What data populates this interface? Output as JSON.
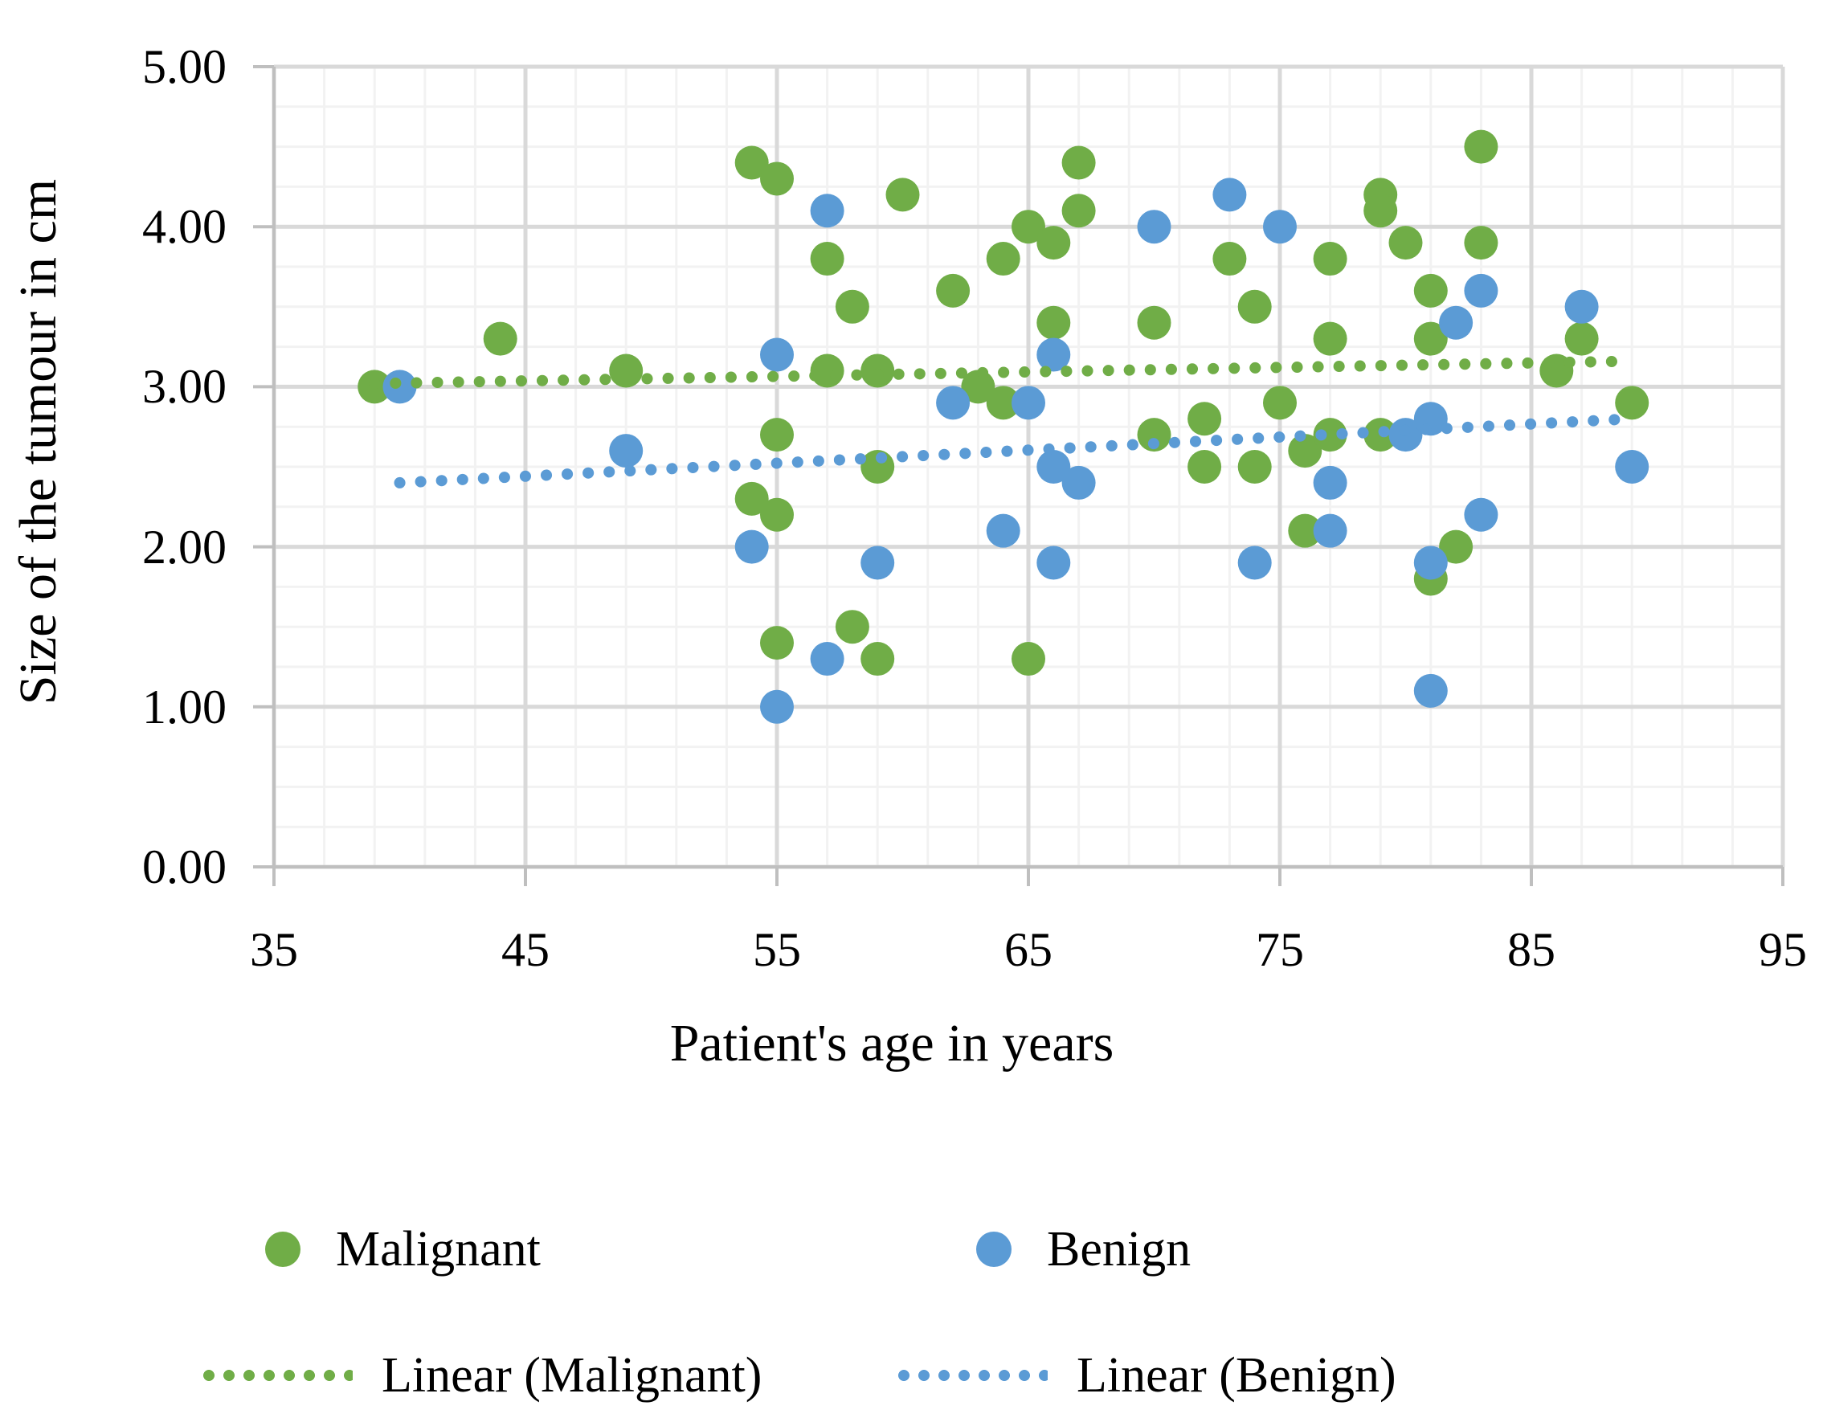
{
  "chart_data": {
    "type": "scatter",
    "xlabel": "Patient's age in years",
    "ylabel": "Size of the tumour in cm",
    "xlim": [
      35,
      95
    ],
    "ylim": [
      0,
      5
    ],
    "x_tick_labels": [
      "35",
      "45",
      "55",
      "65",
      "75",
      "85",
      "95"
    ],
    "y_tick_labels": [
      "5.00",
      "4.00",
      "3.00",
      "2.00",
      "1.00",
      "0.00"
    ],
    "x_major_step": 10,
    "x_minor_step": 2,
    "y_major_step": 1,
    "y_minor_step": 0.25,
    "grid": true,
    "legend_position": "bottom",
    "series": [
      {
        "name": "Malignant",
        "color": "#70AD47",
        "points": [
          [
            39,
            3.0
          ],
          [
            44,
            3.3
          ],
          [
            49,
            3.1
          ],
          [
            54,
            4.4
          ],
          [
            54,
            2.3
          ],
          [
            55,
            4.3
          ],
          [
            55,
            2.7
          ],
          [
            55,
            2.2
          ],
          [
            55,
            1.4
          ],
          [
            57,
            3.8
          ],
          [
            57,
            3.1
          ],
          [
            58,
            3.5
          ],
          [
            58,
            1.5
          ],
          [
            59,
            3.1
          ],
          [
            59,
            2.5
          ],
          [
            59,
            1.3
          ],
          [
            60,
            4.2
          ],
          [
            62,
            3.6
          ],
          [
            63,
            3.0
          ],
          [
            64,
            3.8
          ],
          [
            64,
            2.9
          ],
          [
            65,
            4.0
          ],
          [
            65,
            1.3
          ],
          [
            66,
            3.9
          ],
          [
            66,
            3.4
          ],
          [
            67,
            4.4
          ],
          [
            67,
            4.1
          ],
          [
            70,
            3.4
          ],
          [
            70,
            2.7
          ],
          [
            72,
            2.8
          ],
          [
            72,
            2.5
          ],
          [
            73,
            3.8
          ],
          [
            74,
            3.5
          ],
          [
            74,
            2.5
          ],
          [
            75,
            2.9
          ],
          [
            76,
            2.6
          ],
          [
            76,
            2.1
          ],
          [
            77,
            3.8
          ],
          [
            77,
            3.3
          ],
          [
            77,
            2.7
          ],
          [
            79,
            4.2
          ],
          [
            79,
            4.1
          ],
          [
            79,
            2.7
          ],
          [
            80,
            3.9
          ],
          [
            81,
            3.6
          ],
          [
            81,
            3.3
          ],
          [
            81,
            1.8
          ],
          [
            82,
            2.0
          ],
          [
            83,
            4.5
          ],
          [
            83,
            3.9
          ],
          [
            86,
            3.1
          ],
          [
            87,
            3.3
          ],
          [
            89,
            2.9
          ]
        ]
      },
      {
        "name": "Benign",
        "color": "#5B9BD5",
        "points": [
          [
            40,
            3.0
          ],
          [
            49,
            2.6
          ],
          [
            54,
            2.0
          ],
          [
            55,
            3.2
          ],
          [
            55,
            1.0
          ],
          [
            57,
            4.1
          ],
          [
            57,
            1.3
          ],
          [
            59,
            1.9
          ],
          [
            62,
            2.9
          ],
          [
            64,
            2.1
          ],
          [
            65,
            2.9
          ],
          [
            66,
            3.2
          ],
          [
            66,
            2.5
          ],
          [
            66,
            1.9
          ],
          [
            67,
            2.4
          ],
          [
            70,
            4.0
          ],
          [
            73,
            4.2
          ],
          [
            74,
            1.9
          ],
          [
            75,
            4.0
          ],
          [
            77,
            2.4
          ],
          [
            77,
            2.1
          ],
          [
            80,
            2.7
          ],
          [
            81,
            2.8
          ],
          [
            81,
            1.9
          ],
          [
            81,
            1.1
          ],
          [
            82,
            3.4
          ],
          [
            83,
            3.6
          ],
          [
            83,
            2.2
          ],
          [
            87,
            3.5
          ],
          [
            89,
            2.5
          ]
        ]
      }
    ],
    "trendlines": [
      {
        "name": "Linear (Malignant)",
        "color": "#70AD47",
        "x1": 39,
        "y1": 3.02,
        "x2": 89,
        "y2": 3.16
      },
      {
        "name": "Linear (Benign)",
        "color": "#5B9BD5",
        "x1": 40,
        "y1": 2.4,
        "x2": 89,
        "y2": 2.8
      }
    ]
  },
  "style_colors": {
    "major_grid": "#D9D9D9",
    "minor_grid": "#F2F2F2",
    "axis_line": "#BFBFBF",
    "text": "#000000",
    "background": "#FFFFFF"
  }
}
